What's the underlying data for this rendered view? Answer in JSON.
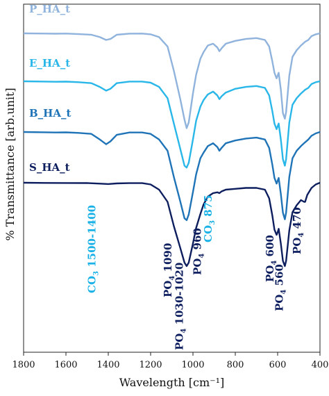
{
  "chart_data": {
    "type": "line",
    "xlabel": "Wavelength [cm⁻¹]",
    "ylabel": "% Transmittance [arb.unit]",
    "xlim": [
      1800,
      400
    ],
    "x_reversed": true,
    "xticks": [
      1800,
      1600,
      1400,
      1200,
      1000,
      800,
      600,
      400
    ],
    "grid": false,
    "series": [
      {
        "name": "P_HA_t",
        "color": "#8fb3dc",
        "points": [
          [
            1800,
            0.0
          ],
          [
            1700,
            0.2
          ],
          [
            1650,
            0.4
          ],
          [
            1600,
            0.2
          ],
          [
            1540,
            0.8
          ],
          [
            1480,
            1.5
          ],
          [
            1440,
            4.0
          ],
          [
            1410,
            7.0
          ],
          [
            1390,
            6.0
          ],
          [
            1360,
            1.5
          ],
          [
            1300,
            0.3
          ],
          [
            1240,
            0.2
          ],
          [
            1200,
            1.0
          ],
          [
            1160,
            4.0
          ],
          [
            1120,
            14.0
          ],
          [
            1090,
            40.0
          ],
          [
            1060,
            70.0
          ],
          [
            1040,
            92.0
          ],
          [
            1030,
            101.0
          ],
          [
            1020,
            95.0
          ],
          [
            1000,
            64.0
          ],
          [
            985,
            44.0
          ],
          [
            965,
            27.0
          ],
          [
            950,
            20.0
          ],
          [
            930,
            13.0
          ],
          [
            905,
            11.0
          ],
          [
            885,
            15.0
          ],
          [
            875,
            19.0
          ],
          [
            865,
            16.0
          ],
          [
            845,
            11.0
          ],
          [
            800,
            8.0
          ],
          [
            750,
            6.0
          ],
          [
            700,
            5.0
          ],
          [
            660,
            7.0
          ],
          [
            640,
            14.0
          ],
          [
            625,
            30.0
          ],
          [
            615,
            42.0
          ],
          [
            605,
            48.0
          ],
          [
            600,
            45.0
          ],
          [
            595,
            42.0
          ],
          [
            585,
            60.0
          ],
          [
            575,
            85.0
          ],
          [
            566,
            91.0
          ],
          [
            560,
            84.0
          ],
          [
            545,
            45.0
          ],
          [
            530,
            25.0
          ],
          [
            510,
            18.0
          ],
          [
            490,
            13.0
          ],
          [
            470,
            9.0
          ],
          [
            455,
            7.0
          ],
          [
            440,
            3.0
          ],
          [
            420,
            1.0
          ],
          [
            400,
            0.0
          ]
        ]
      },
      {
        "name": "E_HA_t",
        "color": "#29b6e8",
        "points": [
          [
            1800,
            0.0
          ],
          [
            1700,
            0.3
          ],
          [
            1650,
            0.5
          ],
          [
            1600,
            0.4
          ],
          [
            1540,
            1.0
          ],
          [
            1480,
            2.0
          ],
          [
            1440,
            6.0
          ],
          [
            1410,
            10.0
          ],
          [
            1390,
            8.0
          ],
          [
            1360,
            2.0
          ],
          [
            1300,
            0.3
          ],
          [
            1240,
            0.3
          ],
          [
            1200,
            1.5
          ],
          [
            1160,
            6.0
          ],
          [
            1120,
            18.0
          ],
          [
            1090,
            45.0
          ],
          [
            1060,
            72.0
          ],
          [
            1040,
            90.0
          ],
          [
            1030,
            92.0
          ],
          [
            1020,
            87.0
          ],
          [
            1000,
            62.0
          ],
          [
            985,
            42.0
          ],
          [
            965,
            27.0
          ],
          [
            950,
            20.0
          ],
          [
            930,
            14.0
          ],
          [
            905,
            11.0
          ],
          [
            885,
            15.0
          ],
          [
            875,
            19.0
          ],
          [
            865,
            16.0
          ],
          [
            845,
            12.0
          ],
          [
            800,
            8.0
          ],
          [
            750,
            6.0
          ],
          [
            700,
            5.0
          ],
          [
            660,
            7.0
          ],
          [
            640,
            15.0
          ],
          [
            625,
            32.0
          ],
          [
            615,
            45.0
          ],
          [
            605,
            51.0
          ],
          [
            600,
            48.0
          ],
          [
            595,
            45.0
          ],
          [
            585,
            62.0
          ],
          [
            575,
            83.0
          ],
          [
            566,
            90.0
          ],
          [
            560,
            83.0
          ],
          [
            545,
            44.0
          ],
          [
            530,
            25.0
          ],
          [
            510,
            18.0
          ],
          [
            490,
            13.0
          ],
          [
            470,
            9.0
          ],
          [
            455,
            7.0
          ],
          [
            440,
            3.0
          ],
          [
            420,
            1.0
          ],
          [
            400,
            0.0
          ]
        ]
      },
      {
        "name": "B_HA_t",
        "color": "#1f73b7",
        "points": [
          [
            1800,
            0.0
          ],
          [
            1700,
            0.3
          ],
          [
            1650,
            0.5
          ],
          [
            1600,
            0.4
          ],
          [
            1540,
            1.0
          ],
          [
            1480,
            2.0
          ],
          [
            1440,
            8.0
          ],
          [
            1410,
            13.0
          ],
          [
            1390,
            10.0
          ],
          [
            1360,
            3.0
          ],
          [
            1300,
            0.5
          ],
          [
            1240,
            0.5
          ],
          [
            1200,
            2.0
          ],
          [
            1160,
            8.0
          ],
          [
            1120,
            20.0
          ],
          [
            1090,
            48.0
          ],
          [
            1060,
            74.0
          ],
          [
            1040,
            92.0
          ],
          [
            1030,
            94.0
          ],
          [
            1020,
            88.0
          ],
          [
            1000,
            64.0
          ],
          [
            985,
            45.0
          ],
          [
            965,
            28.0
          ],
          [
            950,
            22.0
          ],
          [
            930,
            15.0
          ],
          [
            905,
            12.0
          ],
          [
            885,
            16.0
          ],
          [
            875,
            20.0
          ],
          [
            865,
            17.0
          ],
          [
            845,
            12.0
          ],
          [
            800,
            9.0
          ],
          [
            750,
            7.0
          ],
          [
            700,
            6.0
          ],
          [
            660,
            8.0
          ],
          [
            640,
            17.0
          ],
          [
            625,
            35.0
          ],
          [
            615,
            49.0
          ],
          [
            605,
            55.0
          ],
          [
            600,
            52.0
          ],
          [
            595,
            49.0
          ],
          [
            585,
            66.0
          ],
          [
            575,
            86.0
          ],
          [
            566,
            93.0
          ],
          [
            560,
            86.0
          ],
          [
            545,
            48.0
          ],
          [
            530,
            28.0
          ],
          [
            510,
            20.0
          ],
          [
            490,
            15.0
          ],
          [
            470,
            11.0
          ],
          [
            455,
            8.0
          ],
          [
            440,
            4.0
          ],
          [
            420,
            1.5
          ],
          [
            400,
            0.0
          ]
        ]
      },
      {
        "name": "S_HA_t",
        "color": "#0d1e5e",
        "points": [
          [
            1800,
            0.0
          ],
          [
            1700,
            0.2
          ],
          [
            1600,
            0.3
          ],
          [
            1500,
            0.4
          ],
          [
            1440,
            1.0
          ],
          [
            1400,
            1.5
          ],
          [
            1360,
            0.8
          ],
          [
            1300,
            0.5
          ],
          [
            1240,
            0.5
          ],
          [
            1200,
            2.0
          ],
          [
            1160,
            8.0
          ],
          [
            1120,
            22.0
          ],
          [
            1090,
            50.0
          ],
          [
            1060,
            75.0
          ],
          [
            1040,
            92.0
          ],
          [
            1030,
            96.0
          ],
          [
            1020,
            92.0
          ],
          [
            1000,
            70.0
          ],
          [
            985,
            52.0
          ],
          [
            965,
            36.0
          ],
          [
            950,
            25.0
          ],
          [
            930,
            16.0
          ],
          [
            905,
            12.0
          ],
          [
            885,
            11.0
          ],
          [
            875,
            12.0
          ],
          [
            865,
            10.0
          ],
          [
            845,
            8.0
          ],
          [
            800,
            7.0
          ],
          [
            750,
            6.0
          ],
          [
            700,
            6.0
          ],
          [
            660,
            8.0
          ],
          [
            640,
            18.0
          ],
          [
            625,
            38.0
          ],
          [
            615,
            54.0
          ],
          [
            605,
            60.0
          ],
          [
            600,
            57.0
          ],
          [
            595,
            53.0
          ],
          [
            585,
            70.0
          ],
          [
            575,
            90.0
          ],
          [
            566,
            96.0
          ],
          [
            560,
            90.0
          ],
          [
            545,
            55.0
          ],
          [
            530,
            34.0
          ],
          [
            510,
            26.0
          ],
          [
            490,
            20.0
          ],
          [
            475,
            22.0
          ],
          [
            470,
            22.0
          ],
          [
            460,
            14.0
          ],
          [
            440,
            6.0
          ],
          [
            420,
            2.0
          ],
          [
            400,
            0.0
          ]
        ]
      }
    ],
    "annotations": [
      {
        "text": "CO3 1500-1400",
        "base": "CO",
        "sub": "3",
        "rest": " 1500-1400",
        "x": 1460,
        "color": "#1ab2e6"
      },
      {
        "text": "PO4 1090",
        "base": "PO",
        "sub": "4",
        "rest": " 1090",
        "x": 1102,
        "color": "#0d1e5e"
      },
      {
        "text": "PO4 1030-1020",
        "base": "PO",
        "sub": "4",
        "rest": " 1030-1020",
        "x": 1048,
        "color": "#0d1e5e"
      },
      {
        "text": "PO4 960",
        "base": "PO",
        "sub": "4",
        "rest": " 960",
        "x": 962,
        "color": "#0d1e5e"
      },
      {
        "text": "CO3 875",
        "base": "CO",
        "sub": "3",
        "rest": " 875",
        "x": 912,
        "color": "#1ab2e6"
      },
      {
        "text": "PO4 600",
        "base": "PO",
        "sub": "4",
        "rest": " 600",
        "x": 620,
        "color": "#0d1e5e"
      },
      {
        "text": "PO4 560",
        "base": "PO",
        "sub": "4",
        "rest": " 560",
        "x": 575,
        "color": "#0d1e5e"
      },
      {
        "text": "PO4 470",
        "base": "PO",
        "sub": "4",
        "rest": " 470",
        "x": 492,
        "color": "#0d1e5e"
      }
    ]
  }
}
